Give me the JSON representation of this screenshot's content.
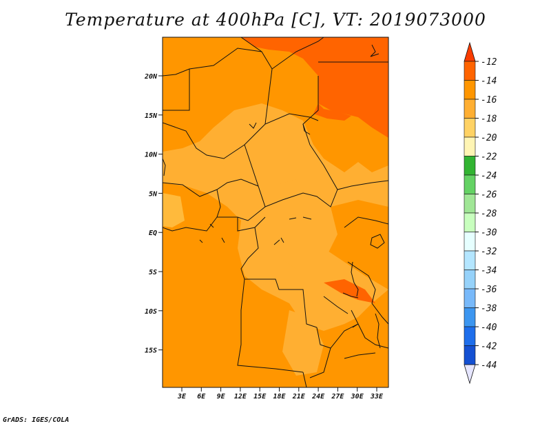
{
  "map": {
    "title": "Temperature at 400hPa [C], VT: 2019073000",
    "lat_labels": [
      "20N",
      "15N",
      "10N",
      "5N",
      "EQ",
      "5S",
      "10S",
      "15S"
    ],
    "lon_labels": [
      "3E",
      "6E",
      "9E",
      "12E",
      "15E",
      "18E",
      "21E",
      "24E",
      "27E",
      "30E",
      "33E"
    ],
    "colorbar_labels": [
      "-12",
      "-14",
      "-16",
      "-18",
      "-20",
      "-22",
      "-24",
      "-26",
      "-28",
      "-30",
      "-32",
      "-34",
      "-36",
      "-38",
      "-40",
      "-42",
      "-44"
    ],
    "colorbar_colors": [
      "#fa3c00",
      "#ff6400",
      "#ff9600",
      "#ffaf32",
      "#ffd264",
      "#fff5b4",
      "#32b432",
      "#64d264",
      "#a0e696",
      "#c8ffbe",
      "#e6ffff",
      "#b4e6ff",
      "#96d2fa",
      "#78b9fa",
      "#3c96f0",
      "#1e6eeb",
      "#1450d2",
      "#0a3cb4",
      "#0a1e78",
      "#e6e6ff"
    ],
    "footer": "GrADS: IGES/COLA"
  }
}
